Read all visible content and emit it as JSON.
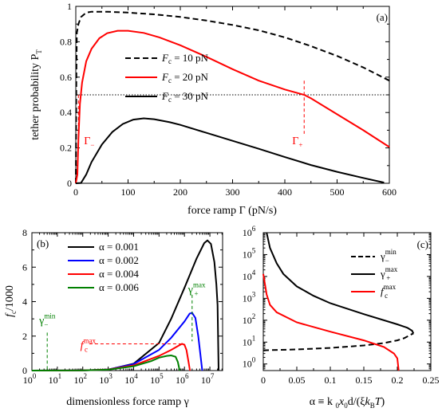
{
  "chart_data": [
    {
      "type": "line",
      "panel_label": "(a)",
      "xlabel": "force ramp Γ  (pN/s)",
      "ylabel": "tether probability P",
      "ylabel_sub": "T",
      "xlim": [
        0,
        600
      ],
      "ylim": [
        0,
        1
      ],
      "x_ticks": [
        0,
        100,
        200,
        300,
        400,
        500,
        600
      ],
      "y_ticks": [
        0,
        0.2,
        0.4,
        0.6,
        0.8,
        1
      ],
      "y_tick_labels": [
        "0",
        "0.2",
        "0.4",
        "0.6",
        "0.8",
        "1"
      ],
      "hline": 0.5,
      "legend_position": "center",
      "series": [
        {
          "name": "F_c = 10 pN",
          "label_main": "F",
          "label_sub": "c",
          "label_rest": " = 10 pN",
          "color": "#000000",
          "dash": "dashed",
          "points": [
            [
              0,
              0
            ],
            [
              1,
              0.6
            ],
            [
              2,
              0.85
            ],
            [
              5,
              0.9
            ],
            [
              10,
              0.94
            ],
            [
              20,
              0.965
            ],
            [
              30,
              0.97
            ],
            [
              60,
              0.97
            ],
            [
              100,
              0.965
            ],
            [
              150,
              0.955
            ],
            [
              200,
              0.94
            ],
            [
              250,
              0.92
            ],
            [
              300,
              0.895
            ],
            [
              350,
              0.865
            ],
            [
              400,
              0.825
            ],
            [
              450,
              0.775
            ],
            [
              500,
              0.72
            ],
            [
              550,
              0.655
            ],
            [
              600,
              0.58
            ]
          ]
        },
        {
          "name": "F_c = 20 pN",
          "label_main": "F",
          "label_sub": "c",
          "label_rest": " = 20 pN",
          "color": "#ff0000",
          "dash": "solid",
          "points": [
            [
              0,
              0
            ],
            [
              3,
              0.05
            ],
            [
              5,
              0.25
            ],
            [
              8,
              0.45
            ],
            [
              12,
              0.57
            ],
            [
              20,
              0.69
            ],
            [
              30,
              0.76
            ],
            [
              45,
              0.82
            ],
            [
              60,
              0.848
            ],
            [
              80,
              0.862
            ],
            [
              100,
              0.862
            ],
            [
              130,
              0.85
            ],
            [
              160,
              0.825
            ],
            [
              200,
              0.78
            ],
            [
              250,
              0.715
            ],
            [
              300,
              0.645
            ],
            [
              350,
              0.58
            ],
            [
              400,
              0.53
            ],
            [
              437,
              0.5
            ],
            [
              450,
              0.48
            ],
            [
              500,
              0.39
            ],
            [
              550,
              0.3
            ],
            [
              600,
              0.205
            ]
          ]
        },
        {
          "name": "F_c = 30 pN",
          "label_main": "F",
          "label_sub": "c",
          "label_rest": " = 30 pN",
          "color": "#000000",
          "dash": "solid",
          "points": [
            [
              0,
              0
            ],
            [
              10,
              0.002
            ],
            [
              20,
              0.05
            ],
            [
              30,
              0.12
            ],
            [
              50,
              0.22
            ],
            [
              70,
              0.29
            ],
            [
              90,
              0.335
            ],
            [
              110,
              0.36
            ],
            [
              130,
              0.367
            ],
            [
              150,
              0.362
            ],
            [
              180,
              0.345
            ],
            [
              200,
              0.33
            ],
            [
              250,
              0.285
            ],
            [
              300,
              0.24
            ],
            [
              350,
              0.195
            ],
            [
              400,
              0.148
            ],
            [
              450,
              0.103
            ],
            [
              500,
              0.065
            ],
            [
              550,
              0.03
            ],
            [
              590,
              0.004
            ]
          ]
        }
      ],
      "markers": [
        {
          "label": "Γ",
          "sub": "−",
          "x": 5
        },
        {
          "label": "Γ",
          "sub": "+",
          "x": 437
        }
      ]
    },
    {
      "type": "line",
      "panel_label": "(b)",
      "xlabel": "dimensionless force ramp γ",
      "ylabel": "f",
      "ylabel_sub": "c",
      "ylabel_rest": "/1000",
      "x_scale": "log",
      "xlim": [
        1,
        31622777
      ],
      "ylim": [
        0,
        8
      ],
      "x_tick_exponents": [
        0,
        1,
        2,
        3,
        4,
        5,
        6,
        7
      ],
      "y_ticks": [
        0,
        2,
        4,
        6,
        8
      ],
      "legend_position": "top-left",
      "series": [
        {
          "name": "α = 0.001",
          "label": "α = 0.001",
          "color": "#000000",
          "points": [
            [
              1,
              0
            ],
            [
              100,
              0.01
            ],
            [
              1000,
              0.05
            ],
            [
              10000,
              0.4
            ],
            [
              100000,
              1.6
            ],
            [
              300000,
              3.0
            ],
            [
              1000000,
              4.8
            ],
            [
              3000000,
              6.5
            ],
            [
              6000000,
              7.4
            ],
            [
              8000000,
              7.55
            ],
            [
              11000000,
              7.35
            ],
            [
              15000000,
              6.3
            ],
            [
              18000000,
              5.0
            ],
            [
              20000000,
              3.8
            ],
            [
              22000000,
              0
            ]
          ]
        },
        {
          "name": "α = 0.002",
          "label": "α = 0.002",
          "color": "#0000ff",
          "points": [
            [
              1,
              0
            ],
            [
              100,
              0.01
            ],
            [
              1000,
              0.06
            ],
            [
              10000,
              0.38
            ],
            [
              100000,
              1.2
            ],
            [
              300000,
              1.9
            ],
            [
              1000000,
              2.85
            ],
            [
              1600000,
              3.3
            ],
            [
              2000000,
              3.35
            ],
            [
              2700000,
              3.05
            ],
            [
              3500000,
              2.0
            ],
            [
              4500000,
              0.6
            ],
            [
              5000000,
              0
            ]
          ]
        },
        {
          "name": "α = 0.004",
          "label": "α = 0.004",
          "color": "#ff0000",
          "points": [
            [
              1,
              0
            ],
            [
              100,
              0.01
            ],
            [
              1000,
              0.06
            ],
            [
              10000,
              0.3
            ],
            [
              100000,
              0.85
            ],
            [
              300000,
              1.2
            ],
            [
              600000,
              1.45
            ],
            [
              800000,
              1.55
            ],
            [
              1000000,
              1.5
            ],
            [
              1200000,
              1.2
            ],
            [
              1450000,
              0.5
            ],
            [
              1650000,
              0
            ]
          ]
        },
        {
          "name": "α = 0.006",
          "label": "α = 0.006",
          "color": "#008000",
          "points": [
            [
              1,
              0
            ],
            [
              100,
              0.01
            ],
            [
              1000,
              0.05
            ],
            [
              10000,
              0.25
            ],
            [
              50000,
              0.55
            ],
            [
              100000,
              0.75
            ],
            [
              200000,
              0.85
            ],
            [
              300000,
              0.88
            ],
            [
              450000,
              0.8
            ],
            [
              550000,
              0.5
            ],
            [
              650000,
              0
            ]
          ]
        }
      ],
      "annotations": [
        {
          "label": "γ",
          "sup": "min",
          "sub": "−",
          "color": "#008000",
          "x": 4,
          "y": 0
        },
        {
          "label": "γ",
          "sup": "max",
          "sub": "+",
          "color": "#008000",
          "x": 2000000,
          "y": 3.4
        },
        {
          "label": "f",
          "sup": "max",
          "sub": "c",
          "color": "#ff0000",
          "y": 1.55
        }
      ]
    },
    {
      "type": "line",
      "panel_label": "(c)",
      "xlabel": "α ≡ k",
      "xlabel_full": "α ≡ k0x0d/(ξkBT)",
      "y_scale": "log",
      "xlim": [
        0,
        0.25
      ],
      "ylim": [
        0.5,
        1000000
      ],
      "x_ticks": [
        0,
        0.05,
        0.1,
        0.15,
        0.2,
        0.25
      ],
      "x_tick_labels": [
        "0",
        "0.05",
        "0.1",
        "0.15",
        "0.2",
        "0.25"
      ],
      "y_tick_exponents": [
        0,
        1,
        2,
        3,
        4,
        5,
        6
      ],
      "legend_position": "top-right",
      "series": [
        {
          "name": "γ_−^min",
          "label_main": "γ",
          "label_sup": "min",
          "label_sub": "−",
          "color": "#000000",
          "dash": "dashed",
          "points": [
            [
              0,
              4.2
            ],
            [
              0.05,
              4.6
            ],
            [
              0.1,
              5.4
            ],
            [
              0.15,
              7
            ],
            [
              0.18,
              9
            ],
            [
              0.2,
              12
            ],
            [
              0.21,
              15
            ],
            [
              0.215,
              18
            ],
            [
              0.22,
              22
            ],
            [
              0.224,
              25
            ]
          ]
        },
        {
          "name": "γ_+^max",
          "label_main": "γ",
          "label_sup": "max",
          "label_sub": "+",
          "color": "#000000",
          "dash": "solid",
          "points": [
            [
              0.005,
              1000000
            ],
            [
              0.01,
              200000
            ],
            [
              0.02,
              40000
            ],
            [
              0.03,
              13000
            ],
            [
              0.05,
              3500
            ],
            [
              0.075,
              1300
            ],
            [
              0.1,
              600
            ],
            [
              0.15,
              190
            ],
            [
              0.2,
              65
            ],
            [
              0.215,
              45
            ],
            [
              0.222,
              33
            ],
            [
              0.224,
              25
            ]
          ]
        },
        {
          "name": "f_c^max",
          "label_main": "f",
          "label_sup": "max",
          "label_sub": "c",
          "color": "#ff0000",
          "dash": "solid",
          "points": [
            [
              0,
              13000
            ],
            [
              0.005,
              1500
            ],
            [
              0.01,
              500
            ],
            [
              0.02,
              230
            ],
            [
              0.05,
              80
            ],
            [
              0.1,
              30
            ],
            [
              0.15,
              12
            ],
            [
              0.18,
              6
            ],
            [
              0.195,
              3
            ],
            [
              0.2,
              1.8
            ],
            [
              0.202,
              0.5
            ]
          ]
        }
      ]
    }
  ]
}
